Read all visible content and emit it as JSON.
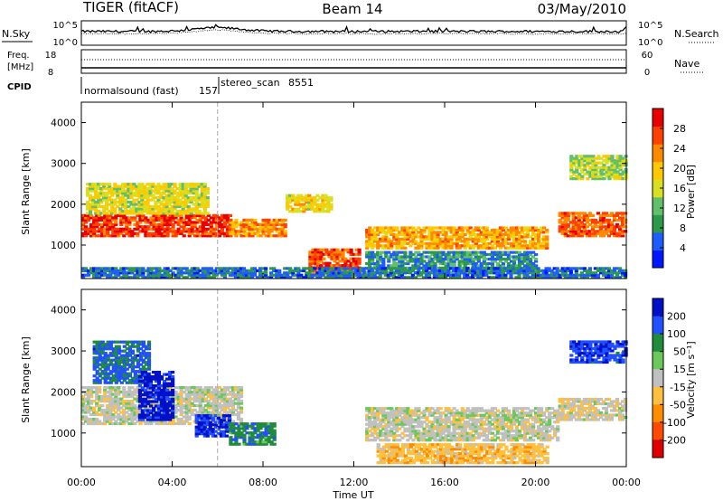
{
  "header": {
    "station": "TIGER (fitACF)",
    "beam": "Beam 14",
    "date": "03/May/2010"
  },
  "nsky_panel": {
    "label": "N.Sky",
    "right_label": "N.Search",
    "ticks_left": [
      "10^5",
      "10^0"
    ],
    "ticks_right": [
      "10^5",
      "10^0"
    ]
  },
  "freq_panel": {
    "label_line1": "Freq.",
    "label_line2": "[MHz]",
    "ticks_left": [
      "18",
      "8"
    ],
    "right_label": "Nave",
    "ticks_right": [
      "60",
      "0"
    ]
  },
  "cpid": {
    "label": "CPID",
    "modes": [
      {
        "name": "normalsound (fast)",
        "id": "157",
        "start_hour": 0
      },
      {
        "name": "stereo_scan",
        "id": "8551",
        "start_hour": 6
      }
    ]
  },
  "time_axis": {
    "label": "Time UT",
    "ticks": [
      "00:00",
      "04:00",
      "08:00",
      "12:00",
      "16:00",
      "20:00",
      "00:00"
    ]
  },
  "range_axis": {
    "label": "Slant Range [km]",
    "ticks": [
      "1000",
      "2000",
      "3000",
      "4000"
    ]
  },
  "power_colorbar": {
    "label": "Power [dB]",
    "ticks": [
      "4",
      "8",
      "12",
      "16",
      "20",
      "24",
      "28"
    ],
    "colors": [
      "#0018ff",
      "#1f5cff",
      "#2c9a4a",
      "#62c06a",
      "#d8e020",
      "#ffc800",
      "#ff8a00",
      "#ff4000",
      "#e80000"
    ]
  },
  "velocity_colorbar": {
    "label": "Velocity [m s⁻¹]",
    "ticks": [
      "200",
      "100",
      "50",
      "15",
      "-15",
      "-50",
      "-100",
      "-200"
    ],
    "colors": [
      "#0010c8",
      "#2050ff",
      "#1e8c3a",
      "#6cc85a",
      "#c0c0c0",
      "#ffc040",
      "#ff8c00",
      "#ff4a00",
      "#e00000"
    ]
  },
  "chart_data": [
    {
      "type": "heatmap",
      "title": "Power",
      "x": "time (UT hours, 0-24)",
      "y": "slant range (km)",
      "xlim": [
        0,
        24
      ],
      "ylim": [
        180,
        4500
      ],
      "zlim": [
        0,
        30
      ],
      "unit": "dB",
      "features": [
        {
          "t0": 0.0,
          "t1": 6.5,
          "r0": 1200,
          "r1": 1750,
          "power": 26
        },
        {
          "t0": 0.2,
          "t1": 5.5,
          "r0": 1750,
          "r1": 2500,
          "power": 16
        },
        {
          "t0": 6.5,
          "t1": 9.0,
          "r0": 1200,
          "r1": 1600,
          "power": 22
        },
        {
          "t0": 9.0,
          "t1": 11.0,
          "r0": 1800,
          "r1": 2200,
          "power": 17
        },
        {
          "t0": 10.0,
          "t1": 12.2,
          "r0": 250,
          "r1": 900,
          "power": 25
        },
        {
          "t0": 12.5,
          "t1": 20.5,
          "r0": 900,
          "r1": 1400,
          "power": 20
        },
        {
          "t0": 12.5,
          "t1": 20.0,
          "r0": 300,
          "r1": 800,
          "power": 8
        },
        {
          "t0": 21.0,
          "t1": 24.0,
          "r0": 1200,
          "r1": 1800,
          "power": 24
        },
        {
          "t0": 21.5,
          "t1": 24.0,
          "r0": 2600,
          "r1": 3200,
          "power": 14
        },
        {
          "t0": 0.0,
          "t1": 24.0,
          "r0": 180,
          "r1": 450,
          "power": 6
        }
      ]
    },
    {
      "type": "heatmap",
      "title": "Velocity",
      "x": "time (UT hours, 0-24)",
      "y": "slant range (km)",
      "xlim": [
        0,
        24
      ],
      "ylim": [
        180,
        4500
      ],
      "zlim": [
        -250,
        250
      ],
      "unit": "m s^-1",
      "features": [
        {
          "t0": 0.0,
          "t1": 7.0,
          "r0": 1200,
          "r1": 2100,
          "velocity": 0
        },
        {
          "t0": 0.5,
          "t1": 3.0,
          "r0": 2200,
          "r1": 3200,
          "velocity": 150
        },
        {
          "t0": 2.5,
          "t1": 4.0,
          "r0": 1300,
          "r1": 2500,
          "velocity": 220
        },
        {
          "t0": 5.0,
          "t1": 6.5,
          "r0": 900,
          "r1": 1400,
          "velocity": 200
        },
        {
          "t0": 6.5,
          "t1": 8.5,
          "r0": 700,
          "r1": 1200,
          "velocity": 120
        },
        {
          "t0": 12.5,
          "t1": 21.0,
          "r0": 800,
          "r1": 1600,
          "velocity": 0
        },
        {
          "t0": 13.0,
          "t1": 20.5,
          "r0": 250,
          "r1": 700,
          "velocity": -60
        },
        {
          "t0": 21.5,
          "t1": 24.0,
          "r0": 2700,
          "r1": 3200,
          "velocity": 180
        },
        {
          "t0": 21.0,
          "t1": 24.0,
          "r0": 1300,
          "r1": 1800,
          "velocity": -10
        }
      ]
    }
  ]
}
